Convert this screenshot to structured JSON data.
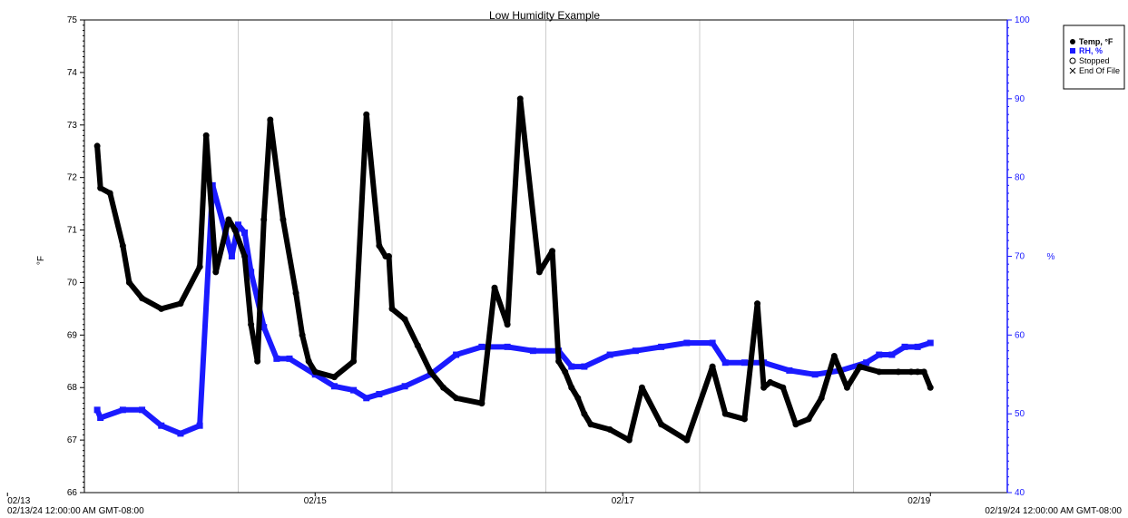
{
  "chart_data": {
    "type": "line",
    "title": "Low Humidity Example",
    "ylabel_left": "°F",
    "ylabel_right": "%",
    "ylim_left": [
      66,
      75
    ],
    "ylim_right": [
      40,
      100
    ],
    "y_ticks_left": [
      "66",
      "67",
      "68",
      "69",
      "70",
      "71",
      "72",
      "73",
      "74",
      "75"
    ],
    "y_ticks_right": [
      "40",
      "50",
      "60",
      "70",
      "80",
      "90",
      "100"
    ],
    "x_ticks": [
      "02/13",
      "02/15",
      "02/17",
      "02/19"
    ],
    "x_start_label": "02/13/24 12:00:00 AM GMT-08:00",
    "x_end_label": "02/19/24 12:00:00 AM GMT-08:00",
    "grid": "vertical",
    "legend": {
      "position": "top-right",
      "entries": [
        {
          "label": "Temp, °F",
          "color": "#000000",
          "symbol": "filled-circle"
        },
        {
          "label": "RH, %",
          "color": "#1a1aff",
          "symbol": "filled-square"
        },
        {
          "label": "Stopped",
          "color": "#000000",
          "symbol": "open-circle"
        },
        {
          "label": "End Of File",
          "color": "#000000",
          "symbol": "x-mark"
        }
      ]
    },
    "series": [
      {
        "name": "Temp, °F",
        "color": "#000000",
        "axis": "left",
        "x": [
          "02/13/24 14:00",
          "02/13/24 14:30",
          "02/13/24 16:00",
          "02/13/24 18:00",
          "02/13/24 19:00",
          "02/13/24 21:00",
          "02/14/24 00:00",
          "02/14/24 03:00",
          "02/14/24 06:00",
          "02/14/24 07:00",
          "02/14/24 08:30",
          "02/14/24 10:30",
          "02/14/24 11:30",
          "02/14/24 13:00",
          "02/14/24 14:00",
          "02/14/24 15:00",
          "02/14/24 16:00",
          "02/14/24 17:00",
          "02/14/24 19:00",
          "02/14/24 21:00",
          "02/14/24 22:00",
          "02/14/24 23:00",
          "02/15/24 00:00",
          "02/15/24 03:00",
          "02/15/24 06:00",
          "02/15/24 08:00",
          "02/15/24 10:00",
          "02/15/24 11:00",
          "02/15/24 11:30",
          "02/15/24 12:00",
          "02/15/24 14:00",
          "02/15/24 16:00",
          "02/15/24 18:00",
          "02/15/24 20:00",
          "02/15/24 22:00",
          "02/16/24 02:00",
          "02/16/24 04:00",
          "02/16/24 06:00",
          "02/16/24 08:00",
          "02/16/24 11:00",
          "02/16/24 13:00",
          "02/16/24 14:00",
          "02/16/24 15:00",
          "02/16/24 16:00",
          "02/16/24 17:00",
          "02/16/24 18:00",
          "02/16/24 19:00",
          "02/16/24 22:00",
          "02/17/24 01:00",
          "02/17/24 03:00",
          "02/17/24 06:00",
          "02/17/24 10:00",
          "02/17/24 14:00",
          "02/17/24 16:00",
          "02/17/24 19:00",
          "02/17/24 21:00",
          "02/17/24 22:00",
          "02/17/24 23:00",
          "02/18/24 01:00",
          "02/18/24 03:00",
          "02/18/24 05:00",
          "02/18/24 07:00",
          "02/18/24 09:00",
          "02/18/24 11:00",
          "02/18/24 13:00",
          "02/18/24 16:00",
          "02/18/24 19:00",
          "02/18/24 21:00",
          "02/18/24 22:00",
          "02/18/24 23:00",
          "02/19/24 00:00"
        ],
        "y": [
          72.6,
          71.8,
          71.7,
          70.7,
          70.0,
          69.7,
          69.5,
          69.6,
          70.3,
          72.8,
          70.2,
          71.2,
          71.0,
          70.5,
          69.2,
          68.5,
          71.2,
          73.1,
          71.2,
          69.8,
          69.0,
          68.5,
          68.3,
          68.2,
          68.5,
          73.2,
          70.7,
          70.5,
          70.5,
          69.5,
          69.3,
          68.8,
          68.3,
          68.0,
          67.8,
          67.7,
          69.9,
          69.2,
          73.5,
          70.2,
          70.6,
          68.5,
          68.3,
          68.0,
          67.8,
          67.5,
          67.3,
          67.2,
          67.0,
          68.0,
          67.3,
          67.0,
          68.4,
          67.5,
          67.4,
          69.6,
          68.0,
          68.1,
          68.0,
          67.3,
          67.4,
          67.8,
          68.6,
          68.0,
          68.4,
          68.3,
          68.3,
          68.3,
          68.3,
          68.3,
          68.0
        ]
      },
      {
        "name": "RH, %",
        "color": "#1a1aff",
        "axis": "right",
        "x": [
          "02/13/24 14:00",
          "02/13/24 14:30",
          "02/13/24 18:00",
          "02/13/24 21:00",
          "02/14/24 00:00",
          "02/14/24 03:00",
          "02/14/24 06:00",
          "02/14/24 08:00",
          "02/14/24 10:00",
          "02/14/24 11:00",
          "02/14/24 12:00",
          "02/14/24 13:00",
          "02/14/24 14:00",
          "02/14/24 16:00",
          "02/14/24 18:00",
          "02/14/24 20:00",
          "02/15/24 00:00",
          "02/15/24 03:00",
          "02/15/24 06:00",
          "02/15/24 08:00",
          "02/15/24 10:00",
          "02/15/24 14:00",
          "02/15/24 18:00",
          "02/15/24 22:00",
          "02/16/24 02:00",
          "02/16/24 06:00",
          "02/16/24 10:00",
          "02/16/24 14:00",
          "02/16/24 16:00",
          "02/16/24 18:00",
          "02/16/24 22:00",
          "02/17/24 02:00",
          "02/17/24 06:00",
          "02/17/24 10:00",
          "02/17/24 14:00",
          "02/17/24 16:00",
          "02/17/24 19:00",
          "02/17/24 22:00",
          "02/18/24 02:00",
          "02/18/24 06:00",
          "02/18/24 10:00",
          "02/18/24 14:00",
          "02/18/24 16:00",
          "02/18/24 18:00",
          "02/18/24 20:00",
          "02/18/24 22:00",
          "02/19/24 00:00"
        ],
        "y": [
          50.5,
          49.5,
          50.5,
          50.5,
          48.5,
          47.5,
          48.5,
          79.0,
          73.0,
          70.0,
          74.0,
          73.0,
          68.0,
          61.0,
          57.0,
          57.0,
          55.0,
          53.5,
          53.0,
          52.0,
          52.5,
          53.5,
          55.0,
          57.5,
          58.5,
          58.5,
          58.0,
          58.0,
          56.0,
          56.0,
          57.5,
          58.0,
          58.5,
          59.0,
          59.0,
          56.5,
          56.5,
          56.5,
          55.5,
          55.0,
          55.5,
          56.5,
          57.5,
          57.5,
          58.5,
          58.5,
          59.0
        ]
      }
    ]
  }
}
